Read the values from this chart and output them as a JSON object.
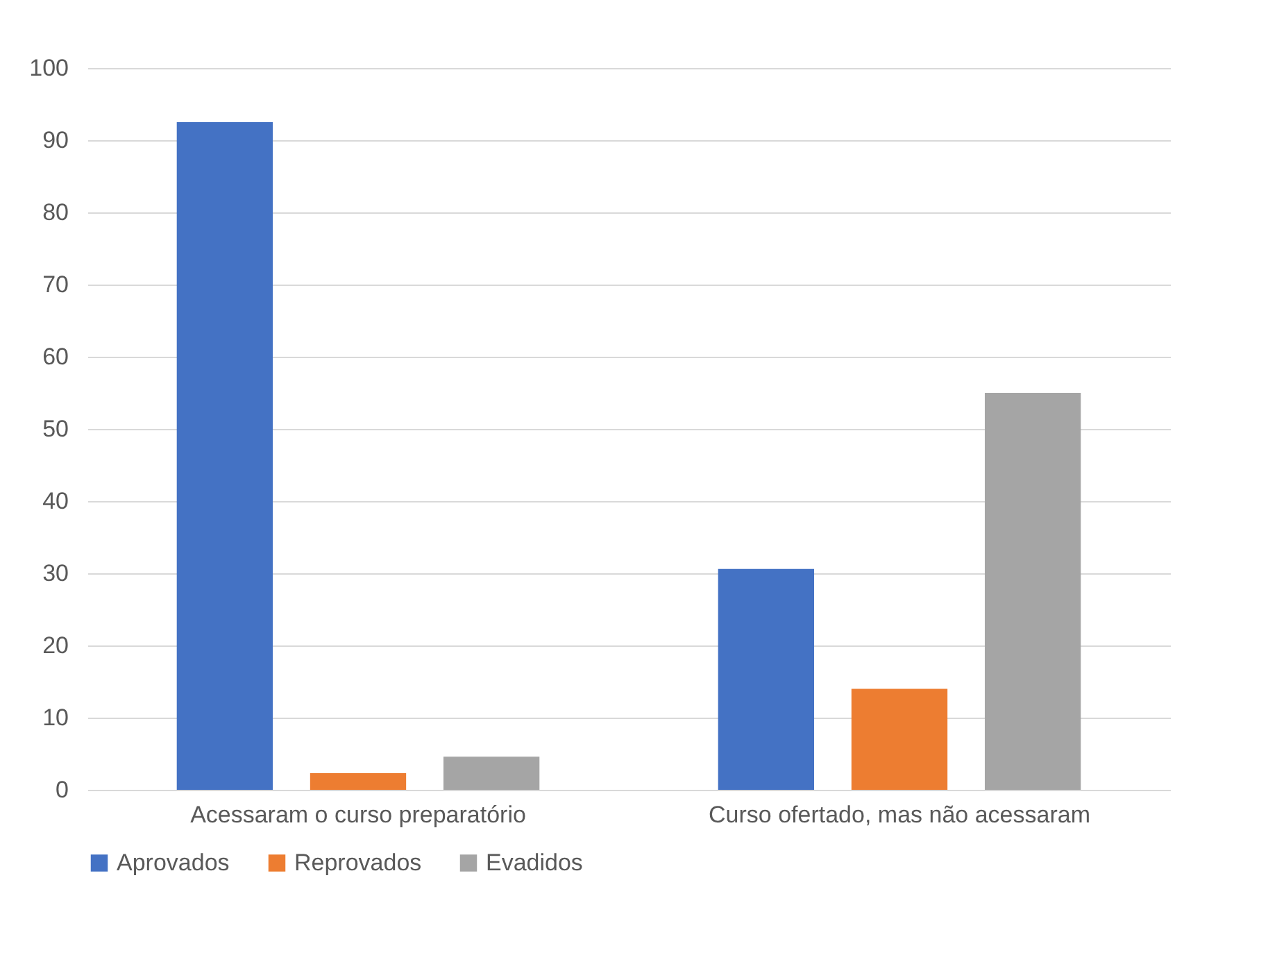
{
  "chart_data": {
    "type": "bar",
    "categories": [
      "Acessaram o curso preparatório",
      "Curso ofertado, mas não acessaram"
    ],
    "series": [
      {
        "name": "Aprovados",
        "color": "#4472c4",
        "values": [
          92.5,
          30.6
        ]
      },
      {
        "name": "Reprovados",
        "color": "#ed7d31",
        "values": [
          2.3,
          14
        ]
      },
      {
        "name": "Evadidos",
        "color": "#a5a5a5",
        "values": [
          4.6,
          55
        ]
      }
    ],
    "ylim": [
      0,
      100
    ],
    "yticks": [
      0,
      10,
      20,
      30,
      40,
      50,
      60,
      70,
      80,
      90,
      100
    ],
    "grid": "y",
    "legend": "bottom"
  }
}
